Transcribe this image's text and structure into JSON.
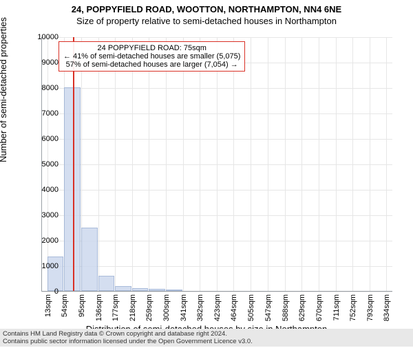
{
  "titles": {
    "line1": "24, POPPYFIELD ROAD, WOOTTON, NORTHAMPTON, NN4 6NE",
    "line2": "Size of property relative to semi-detached houses in Northampton"
  },
  "axes": {
    "ylabel": "Number of semi-detached properties",
    "xlabel": "Distribution of semi-detached houses by size in Northampton",
    "ylim": [
      0,
      10000
    ],
    "yticks": [
      0,
      1000,
      2000,
      3000,
      4000,
      5000,
      6000,
      7000,
      8000,
      9000,
      10000
    ],
    "xticks": [
      13,
      54,
      95,
      136,
      177,
      218,
      259,
      300,
      341,
      382,
      423,
      464,
      505,
      547,
      588,
      629,
      670,
      711,
      752,
      793,
      834
    ],
    "xtick_suffix": "sqm",
    "xlim": [
      0,
      850
    ]
  },
  "histogram": {
    "type": "histogram",
    "bin_width": 41,
    "bin_starts": [
      13,
      54,
      95,
      136,
      177,
      218,
      259,
      300
    ],
    "counts": [
      1350,
      8000,
      2500,
      600,
      200,
      120,
      80,
      40
    ],
    "bar_fill": "#cdd9ee",
    "bar_stroke": "#9bb0d4",
    "bar_opacity": 0.85
  },
  "marker": {
    "x_value": 75,
    "color": "#d93025"
  },
  "annotation": {
    "line1": "24 POPPYFIELD ROAD: 75sqm",
    "line2": "← 41% of semi-detached houses are smaller (5,075)",
    "line3": "57% of semi-detached houses are larger (7,054) →",
    "border_color": "#d93025",
    "bg_color": "#ffffff"
  },
  "footer": {
    "line1": "Contains HM Land Registry data © Crown copyright and database right 2024.",
    "line2": "Contains public sector information licensed under the Open Government Licence v3.0."
  },
  "style": {
    "title_fontsize": 13,
    "tick_fontsize": 11,
    "label_fontsize": 13,
    "grid_color": "#e6e6e6",
    "axis_color": "#9aa0a6",
    "background_color": "#ffffff"
  }
}
